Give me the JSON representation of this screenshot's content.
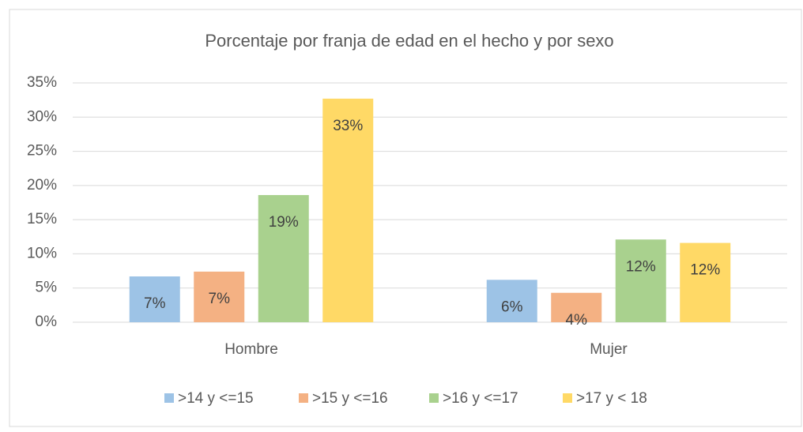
{
  "chart_data": {
    "type": "bar",
    "title": "Porcentaje por franja de edad en el hecho y por sexo",
    "categories": [
      "Hombre",
      "Mujer"
    ],
    "series": [
      {
        "name": ">14 y <=15",
        "color": "#9dc3e6",
        "values": [
          6.7,
          6.2
        ],
        "value_labels": [
          "7%",
          "6%"
        ]
      },
      {
        "name": ">15 y <=16",
        "color": "#f4b183",
        "values": [
          7.4,
          4.3
        ],
        "value_labels": [
          "7%",
          "4%"
        ]
      },
      {
        "name": ">16 y <=17",
        "color": "#a9d18e",
        "values": [
          18.6,
          12.1
        ],
        "value_labels": [
          "19%",
          "12%"
        ]
      },
      {
        "name": ">17 y < 18",
        "color": "#ffd966",
        "values": [
          32.7,
          11.6
        ],
        "value_labels": [
          "33%",
          "12%"
        ]
      }
    ],
    "ylim": [
      0,
      35
    ],
    "yticks": [
      {
        "value": 0,
        "label": "0%"
      },
      {
        "value": 5,
        "label": "5%"
      },
      {
        "value": 10,
        "label": "10%"
      },
      {
        "value": 15,
        "label": "15%"
      },
      {
        "value": 20,
        "label": "20%"
      },
      {
        "value": 25,
        "label": "25%"
      },
      {
        "value": 30,
        "label": "30%"
      },
      {
        "value": 35,
        "label": "35%"
      }
    ],
    "grid": true,
    "legend": "bottom"
  }
}
